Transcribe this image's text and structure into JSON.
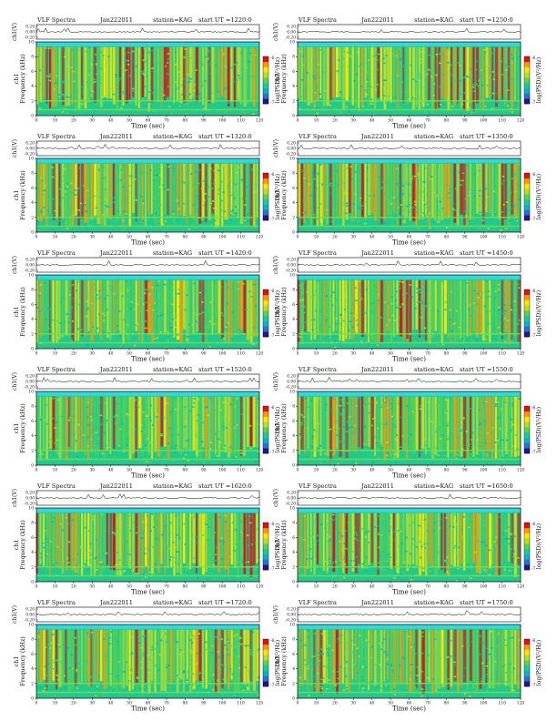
{
  "chart_data": {
    "type": "heatmap",
    "common": {
      "title": "VLF Spectra",
      "date": "Jan222011",
      "station": "station=KAG",
      "time_prefix": "start  UT",
      "xlabel": "Time (sec)",
      "ylabel_spec": "Frequency (kHz)",
      "ylabel_spec_ch": "ch1",
      "ylabel_amp": "ch1(V)",
      "colorbar_label": "log(PSD)(V²/Hz)",
      "x_ticks": [
        0,
        10,
        20,
        30,
        40,
        50,
        60,
        70,
        80,
        90,
        100,
        110,
        120
      ],
      "xlim": [
        0,
        120
      ],
      "y_ticks": [
        0,
        2,
        4,
        6,
        8,
        10
      ],
      "ylim": [
        0,
        10
      ],
      "amp_ticks": [
        "0.20",
        "0.00",
        "-0.20"
      ],
      "colorbar_ticks": [
        -6,
        -7
      ],
      "colormap": [
        "#1a1a8c",
        "#2b6fd6",
        "#00b6c8",
        "#20c994",
        "#5cd24c",
        "#b8dc2a",
        "#ffe400",
        "#ff9a00",
        "#e01010"
      ],
      "band_color": "#30d8e0"
    },
    "panels": [
      {
        "start": "=1220:0"
      },
      {
        "start": "=1250:0"
      },
      {
        "start": "=1320:0"
      },
      {
        "start": "=1350:0"
      },
      {
        "start": "=1420:0"
      },
      {
        "start": "=1450:0"
      },
      {
        "start": "=1520:0"
      },
      {
        "start": "=1550:0"
      },
      {
        "start": "=1620:0"
      },
      {
        "start": "=1650:0"
      },
      {
        "start": "=1720:0"
      },
      {
        "start": "=1750:0"
      }
    ]
  }
}
